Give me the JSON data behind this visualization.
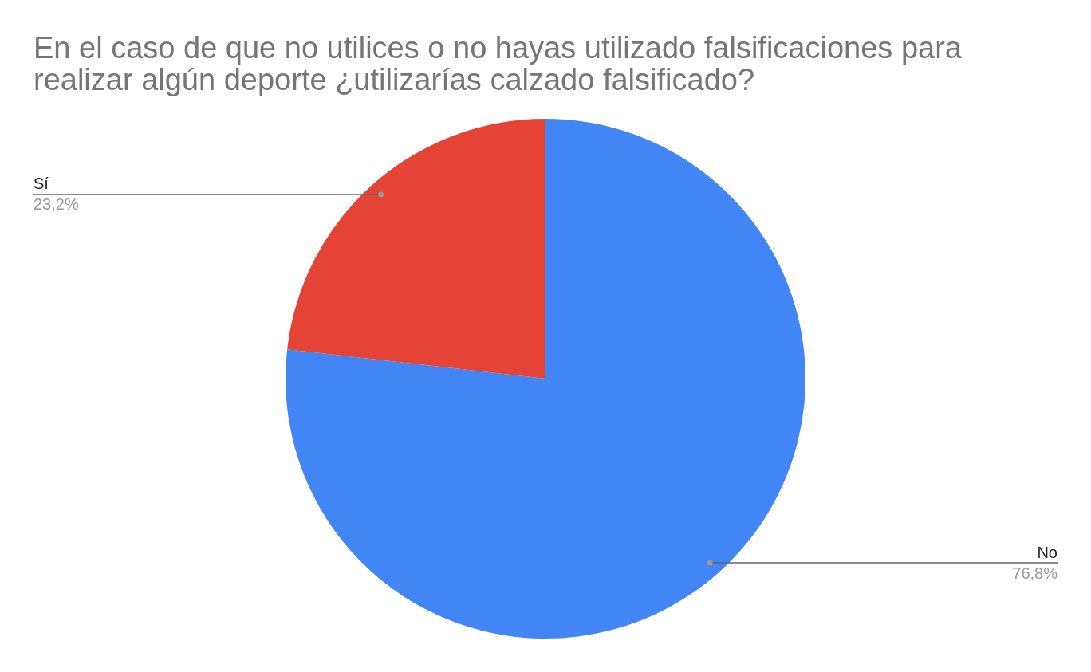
{
  "chart_data": {
    "type": "pie",
    "title": "En el caso de que no utilices o no hayas utilizado falsificaciones para realizar algún deporte ¿utilizarías calzado falsificado?",
    "categories": [
      "No",
      "Sí"
    ],
    "values": [
      76.8,
      23.2
    ],
    "colors": [
      "#4285f4",
      "#e54335"
    ],
    "value_labels": [
      "76,8%",
      "23,2%"
    ],
    "legend": false
  }
}
